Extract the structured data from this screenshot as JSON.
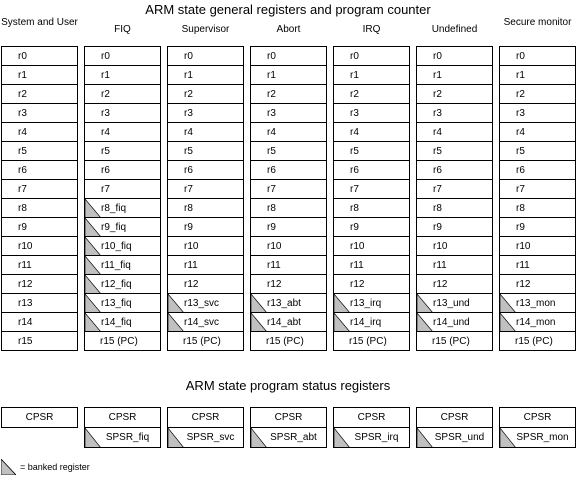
{
  "title_registers": "ARM state general registers and program counter",
  "title_status": "ARM state program status registers",
  "legend_label": "= banked register",
  "columns": [
    {
      "name": "System and User",
      "registers": [
        {
          "label": "r0",
          "banked": false
        },
        {
          "label": "r1",
          "banked": false
        },
        {
          "label": "r2",
          "banked": false
        },
        {
          "label": "r3",
          "banked": false
        },
        {
          "label": "r4",
          "banked": false
        },
        {
          "label": "r5",
          "banked": false
        },
        {
          "label": "r6",
          "banked": false
        },
        {
          "label": "r7",
          "banked": false
        },
        {
          "label": "r8",
          "banked": false
        },
        {
          "label": "r9",
          "banked": false
        },
        {
          "label": "r10",
          "banked": false
        },
        {
          "label": "r11",
          "banked": false
        },
        {
          "label": "r12",
          "banked": false
        },
        {
          "label": "r13",
          "banked": false
        },
        {
          "label": "r14",
          "banked": false
        },
        {
          "label": "r15",
          "banked": false
        }
      ],
      "status": [
        {
          "label": "CPSR",
          "banked": false
        }
      ]
    },
    {
      "name": "FIQ",
      "registers": [
        {
          "label": "r0",
          "banked": false
        },
        {
          "label": "r1",
          "banked": false
        },
        {
          "label": "r2",
          "banked": false
        },
        {
          "label": "r3",
          "banked": false
        },
        {
          "label": "r4",
          "banked": false
        },
        {
          "label": "r5",
          "banked": false
        },
        {
          "label": "r6",
          "banked": false
        },
        {
          "label": "r7",
          "banked": false
        },
        {
          "label": "r8_fiq",
          "banked": true
        },
        {
          "label": "r9_fiq",
          "banked": true
        },
        {
          "label": "r10_fiq",
          "banked": true
        },
        {
          "label": "r11_fiq",
          "banked": true
        },
        {
          "label": "r12_fiq",
          "banked": true
        },
        {
          "label": "r13_fiq",
          "banked": true
        },
        {
          "label": "r14_fiq",
          "banked": true
        },
        {
          "label": "r15 (PC)",
          "banked": false
        }
      ],
      "status": [
        {
          "label": "CPSR",
          "banked": false
        },
        {
          "label": "SPSR_fiq",
          "banked": true
        }
      ]
    },
    {
      "name": "Supervisor",
      "registers": [
        {
          "label": "r0",
          "banked": false
        },
        {
          "label": "r1",
          "banked": false
        },
        {
          "label": "r2",
          "banked": false
        },
        {
          "label": "r3",
          "banked": false
        },
        {
          "label": "r4",
          "banked": false
        },
        {
          "label": "r5",
          "banked": false
        },
        {
          "label": "r6",
          "banked": false
        },
        {
          "label": "r7",
          "banked": false
        },
        {
          "label": "r8",
          "banked": false
        },
        {
          "label": "r9",
          "banked": false
        },
        {
          "label": "r10",
          "banked": false
        },
        {
          "label": "r11",
          "banked": false
        },
        {
          "label": "r12",
          "banked": false
        },
        {
          "label": "r13_svc",
          "banked": true
        },
        {
          "label": "r14_svc",
          "banked": true
        },
        {
          "label": "r15 (PC)",
          "banked": false
        }
      ],
      "status": [
        {
          "label": "CPSR",
          "banked": false
        },
        {
          "label": "SPSR_svc",
          "banked": true
        }
      ]
    },
    {
      "name": "Abort",
      "registers": [
        {
          "label": "r0",
          "banked": false
        },
        {
          "label": "r1",
          "banked": false
        },
        {
          "label": "r2",
          "banked": false
        },
        {
          "label": "r3",
          "banked": false
        },
        {
          "label": "r4",
          "banked": false
        },
        {
          "label": "r5",
          "banked": false
        },
        {
          "label": "r6",
          "banked": false
        },
        {
          "label": "r7",
          "banked": false
        },
        {
          "label": "r8",
          "banked": false
        },
        {
          "label": "r9",
          "banked": false
        },
        {
          "label": "r10",
          "banked": false
        },
        {
          "label": "r11",
          "banked": false
        },
        {
          "label": "r12",
          "banked": false
        },
        {
          "label": "r13_abt",
          "banked": true
        },
        {
          "label": "r14_abt",
          "banked": true
        },
        {
          "label": "r15 (PC)",
          "banked": false
        }
      ],
      "status": [
        {
          "label": "CPSR",
          "banked": false
        },
        {
          "label": "SPSR_abt",
          "banked": true
        }
      ]
    },
    {
      "name": "IRQ",
      "registers": [
        {
          "label": "r0",
          "banked": false
        },
        {
          "label": "r1",
          "banked": false
        },
        {
          "label": "r2",
          "banked": false
        },
        {
          "label": "r3",
          "banked": false
        },
        {
          "label": "r4",
          "banked": false
        },
        {
          "label": "r5",
          "banked": false
        },
        {
          "label": "r6",
          "banked": false
        },
        {
          "label": "r7",
          "banked": false
        },
        {
          "label": "r8",
          "banked": false
        },
        {
          "label": "r9",
          "banked": false
        },
        {
          "label": "r10",
          "banked": false
        },
        {
          "label": "r11",
          "banked": false
        },
        {
          "label": "r12",
          "banked": false
        },
        {
          "label": "r13_irq",
          "banked": true
        },
        {
          "label": "r14_irq",
          "banked": true
        },
        {
          "label": "r15 (PC)",
          "banked": false
        }
      ],
      "status": [
        {
          "label": "CPSR",
          "banked": false
        },
        {
          "label": "SPSR_irq",
          "banked": true
        }
      ]
    },
    {
      "name": "Undefined",
      "registers": [
        {
          "label": "r0",
          "banked": false
        },
        {
          "label": "r1",
          "banked": false
        },
        {
          "label": "r2",
          "banked": false
        },
        {
          "label": "r3",
          "banked": false
        },
        {
          "label": "r4",
          "banked": false
        },
        {
          "label": "r5",
          "banked": false
        },
        {
          "label": "r6",
          "banked": false
        },
        {
          "label": "r7",
          "banked": false
        },
        {
          "label": "r8",
          "banked": false
        },
        {
          "label": "r9",
          "banked": false
        },
        {
          "label": "r10",
          "banked": false
        },
        {
          "label": "r11",
          "banked": false
        },
        {
          "label": "r12",
          "banked": false
        },
        {
          "label": "r13_und",
          "banked": true
        },
        {
          "label": "r14_und",
          "banked": true
        },
        {
          "label": "r15 (PC)",
          "banked": false
        }
      ],
      "status": [
        {
          "label": "CPSR",
          "banked": false
        },
        {
          "label": "SPSR_und",
          "banked": true
        }
      ]
    },
    {
      "name": "Secure monitor",
      "registers": [
        {
          "label": "r0",
          "banked": false
        },
        {
          "label": "r1",
          "banked": false
        },
        {
          "label": "r2",
          "banked": false
        },
        {
          "label": "r3",
          "banked": false
        },
        {
          "label": "r4",
          "banked": false
        },
        {
          "label": "r5",
          "banked": false
        },
        {
          "label": "r6",
          "banked": false
        },
        {
          "label": "r7",
          "banked": false
        },
        {
          "label": "r8",
          "banked": false
        },
        {
          "label": "r9",
          "banked": false
        },
        {
          "label": "r10",
          "banked": false
        },
        {
          "label": "r11",
          "banked": false
        },
        {
          "label": "r12",
          "banked": false
        },
        {
          "label": "r13_mon",
          "banked": true
        },
        {
          "label": "r14_mon",
          "banked": true
        },
        {
          "label": "r15 (PC)",
          "banked": false
        }
      ],
      "status": [
        {
          "label": "CPSR",
          "banked": false
        },
        {
          "label": "SPSR_mon",
          "banked": true
        }
      ]
    }
  ],
  "colors": {
    "banked_fill": "#c0c0c0",
    "border": "#000000",
    "background": "#ffffff"
  }
}
